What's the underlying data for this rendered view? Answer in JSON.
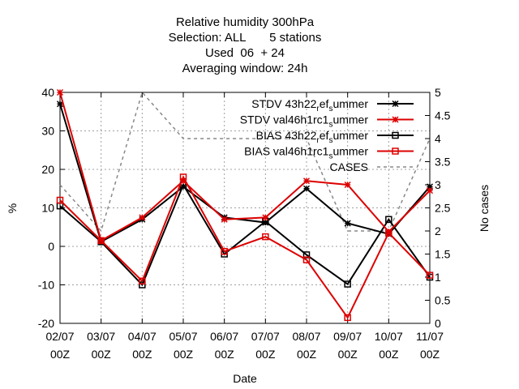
{
  "chart_data": {
    "type": "line",
    "title_lines": [
      "Relative humidity 300hPa",
      "Selection: ALL       5 stations",
      "Used  06  + 24",
      "Averaging window: 24h"
    ],
    "xlabel": "Date",
    "ylabel": "%",
    "y2label": "No cases",
    "categories": [
      [
        "02/07",
        "00Z"
      ],
      [
        "03/07",
        "00Z"
      ],
      [
        "04/07",
        "00Z"
      ],
      [
        "05/07",
        "00Z"
      ],
      [
        "06/07",
        "00Z"
      ],
      [
        "07/07",
        "00Z"
      ],
      [
        "08/07",
        "00Z"
      ],
      [
        "09/07",
        "00Z"
      ],
      [
        "10/07",
        "00Z"
      ],
      [
        "11/07",
        "00Z"
      ]
    ],
    "ylim": [
      -20,
      40
    ],
    "yticks": [
      "-20",
      "-10",
      "0",
      "10",
      "20",
      "30",
      "40"
    ],
    "y2lim": [
      0,
      5
    ],
    "y2ticks": [
      "0",
      "0.5",
      "1",
      "1.5",
      "2",
      "2.5",
      "3",
      "3.5",
      "4",
      "4.5",
      "5"
    ],
    "grid": true,
    "legend_position": "top-right",
    "series": [
      {
        "legend_parts": [
          [
            "STDV 43h22",
            "n"
          ],
          [
            "r",
            "s"
          ],
          [
            "ef",
            "n"
          ],
          [
            "s",
            "s"
          ],
          [
            "ummer",
            "n"
          ]
        ],
        "color": "#000000",
        "marker": "star",
        "axis": "left",
        "values": [
          37,
          1.2,
          7,
          15.5,
          7.5,
          6.2,
          15,
          6,
          3.2,
          15.5
        ]
      },
      {
        "legend_parts": [
          [
            "STDV val46h1rc1",
            "n"
          ],
          [
            "s",
            "s"
          ],
          [
            "ummer",
            "n"
          ]
        ],
        "color": "#dd0000",
        "marker": "star",
        "axis": "left",
        "values": [
          40,
          1.5,
          7.5,
          17,
          7,
          7.5,
          17,
          16,
          3.8,
          14.5
        ]
      },
      {
        "legend_parts": [
          [
            "BIAS 43h22",
            "n"
          ],
          [
            "r",
            "s"
          ],
          [
            "ef",
            "n"
          ],
          [
            "s",
            "s"
          ],
          [
            "ummer",
            "n"
          ]
        ],
        "color": "#000000",
        "marker": "square",
        "axis": "left",
        "values": [
          10.5,
          1.2,
          -10,
          16,
          -2,
          6.5,
          -2.2,
          -9.8,
          7,
          -8
        ]
      },
      {
        "legend_parts": [
          [
            "BIAS val46h1rc1",
            "n"
          ],
          [
            "s",
            "s"
          ],
          [
            "ummer",
            "n"
          ]
        ],
        "color": "#dd0000",
        "marker": "square",
        "axis": "left",
        "values": [
          12,
          1.5,
          -9,
          18,
          -1.3,
          2.5,
          -3.5,
          -18.5,
          3.5,
          -7.5
        ]
      },
      {
        "legend_parts": [
          [
            "CASES",
            "n"
          ]
        ],
        "color": "#888888",
        "marker": "none",
        "dashed": true,
        "axis": "right",
        "values": [
          3,
          2,
          5,
          4,
          4,
          4,
          4,
          2,
          2,
          4
        ]
      }
    ]
  }
}
